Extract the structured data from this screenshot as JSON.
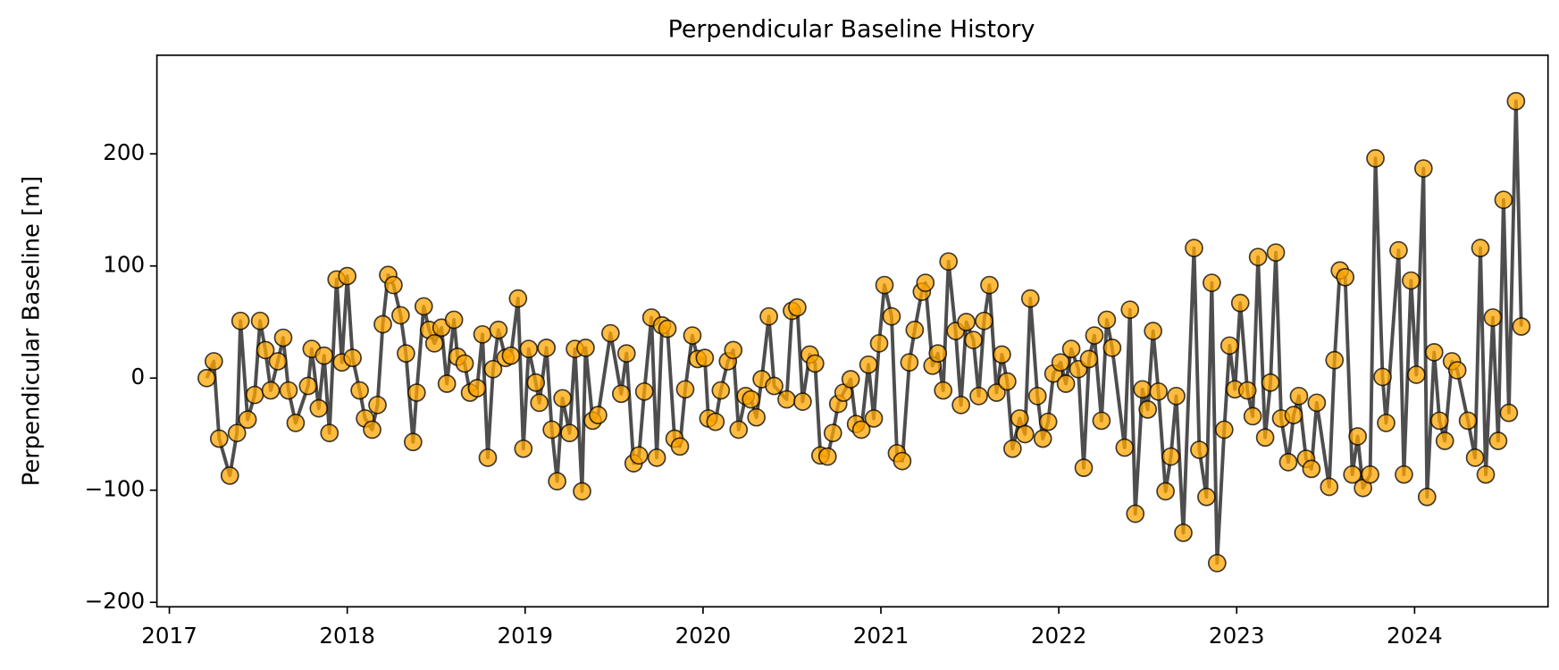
{
  "chart_data": {
    "type": "line",
    "title": "Perpendicular Baseline History",
    "ylabel": "Perpendicular Baseline [m]",
    "color": "#ffa500",
    "line_color": "#444444",
    "xlim": [
      2016.93,
      2024.75
    ],
    "xticks": [
      2017,
      2018,
      2019,
      2020,
      2021,
      2022,
      2023,
      2024
    ],
    "ylim": [
      -204,
      288
    ],
    "yticks": [
      {
        "value": -200,
        "label": "−200"
      },
      {
        "value": -100,
        "label": "−100"
      },
      0,
      100,
      200
    ],
    "x": [
      2017.21,
      2017.25,
      2017.28,
      2017.34,
      2017.38,
      2017.4,
      2017.44,
      2017.48,
      2017.51,
      2017.54,
      2017.57,
      2017.61,
      2017.64,
      2017.67,
      2017.71,
      2017.78,
      2017.8,
      2017.84,
      2017.87,
      2017.9,
      2017.94,
      2017.97,
      2018.0,
      2018.03,
      2018.07,
      2018.1,
      2018.14,
      2018.17,
      2018.2,
      2018.23,
      2018.26,
      2018.3,
      2018.33,
      2018.37,
      2018.39,
      2018.43,
      2018.46,
      2018.49,
      2018.53,
      2018.56,
      2018.6,
      2018.62,
      2018.66,
      2018.69,
      2018.73,
      2018.76,
      2018.79,
      2018.82,
      2018.85,
      2018.89,
      2018.92,
      2018.96,
      2018.99,
      2019.02,
      2019.06,
      2019.08,
      2019.12,
      2019.15,
      2019.18,
      2019.21,
      2019.25,
      2019.28,
      2019.32,
      2019.34,
      2019.38,
      2019.41,
      2019.48,
      2019.54,
      2019.57,
      2019.61,
      2019.64,
      2019.67,
      2019.71,
      2019.74,
      2019.77,
      2019.8,
      2019.84,
      2019.87,
      2019.9,
      2019.94,
      2019.97,
      2020.01,
      2020.03,
      2020.07,
      2020.1,
      2020.14,
      2020.17,
      2020.2,
      2020.24,
      2020.27,
      2020.3,
      2020.33,
      2020.37,
      2020.4,
      2020.47,
      2020.5,
      2020.53,
      2020.56,
      2020.6,
      2020.63,
      2020.66,
      2020.7,
      2020.73,
      2020.76,
      2020.79,
      2020.83,
      2020.86,
      2020.89,
      2020.93,
      2020.96,
      2020.99,
      2021.02,
      2021.06,
      2021.09,
      2021.12,
      2021.16,
      2021.19,
      2021.23,
      2021.25,
      2021.29,
      2021.32,
      2021.35,
      2021.38,
      2021.42,
      2021.45,
      2021.48,
      2021.52,
      2021.55,
      2021.58,
      2021.61,
      2021.65,
      2021.68,
      2021.71,
      2021.74,
      2021.78,
      2021.81,
      2021.84,
      2021.88,
      2021.91,
      2021.94,
      2021.97,
      2022.01,
      2022.04,
      2022.07,
      2022.11,
      2022.14,
      2022.17,
      2022.2,
      2022.24,
      2022.27,
      2022.3,
      2022.37,
      2022.4,
      2022.43,
      2022.47,
      2022.5,
      2022.53,
      2022.56,
      2022.6,
      2022.63,
      2022.66,
      2022.7,
      2022.76,
      2022.79,
      2022.83,
      2022.86,
      2022.89,
      2022.93,
      2022.96,
      2022.99,
      2023.02,
      2023.06,
      2023.09,
      2023.12,
      2023.16,
      2023.19,
      2023.22,
      2023.25,
      2023.29,
      2023.32,
      2023.35,
      2023.39,
      2023.42,
      2023.45,
      2023.52,
      2023.55,
      2023.58,
      2023.61,
      2023.65,
      2023.68,
      2023.71,
      2023.75,
      2023.78,
      2023.82,
      2023.84,
      2023.91,
      2023.94,
      2023.98,
      2024.01,
      2024.05,
      2024.07,
      2024.11,
      2024.14,
      2024.17,
      2024.21,
      2024.24,
      2024.3,
      2024.34,
      2024.37,
      2024.4,
      2024.44,
      2024.47,
      2024.5,
      2024.53,
      2024.57,
      2024.6
    ],
    "values": [
      0,
      15,
      -54,
      -87,
      -49,
      51,
      -37,
      -15,
      51,
      25,
      -11,
      15,
      36,
      -11,
      -40,
      -7,
      26,
      -27,
      20,
      -49,
      88,
      14,
      91,
      18,
      -11,
      -36,
      -46,
      -24,
      48,
      92,
      83,
      56,
      22,
      -57,
      -13,
      64,
      43,
      31,
      45,
      -5,
      52,
      19,
      13,
      -13,
      -9,
      39,
      -71,
      8,
      43,
      18,
      20,
      71,
      -63,
      26,
      -4,
      -22,
      27,
      -46,
      -92,
      -18,
      -49,
      26,
      -101,
      27,
      -38,
      -33,
      40,
      -14,
      22,
      -76,
      -69,
      -12,
      54,
      -71,
      47,
      44,
      -54,
      -61,
      -10,
      38,
      17,
      18,
      -36,
      -39,
      -11,
      15,
      25,
      -46,
      -16,
      -19,
      -35,
      -1,
      55,
      -7,
      -19,
      60,
      63,
      -21,
      21,
      13,
      -69,
      -70,
      -49,
      -23,
      -13,
      -1,
      -41,
      -46,
      12,
      -36,
      31,
      83,
      55,
      -67,
      -74,
      14,
      43,
      77,
      85,
      11,
      22,
      -11,
      104,
      42,
      -24,
      50,
      34,
      -16,
      51,
      83,
      -13,
      21,
      -3,
      -63,
      -36,
      -50,
      71,
      -16,
      -54,
      -39,
      4,
      14,
      -5,
      26,
      8,
      -80,
      17,
      38,
      -38,
      52,
      27,
      -62,
      61,
      -121,
      -10,
      -28,
      42,
      -12,
      -101,
      -70,
      -16,
      -138,
      116,
      -64,
      -106,
      85,
      -165,
      -46,
      29,
      -10,
      67,
      -11,
      -34,
      108,
      -53,
      -4,
      112,
      -36,
      -75,
      -33,
      -16,
      -72,
      -81,
      -22,
      -97,
      16,
      96,
      90,
      -86,
      -52,
      -98,
      -86,
      196,
      1,
      -40,
      114,
      -86,
      87,
      3,
      187,
      -106,
      23,
      -38,
      -56,
      15,
      7,
      -38,
      -71,
      116,
      -86,
      54,
      -56,
      159,
      -31,
      247,
      46
    ]
  }
}
